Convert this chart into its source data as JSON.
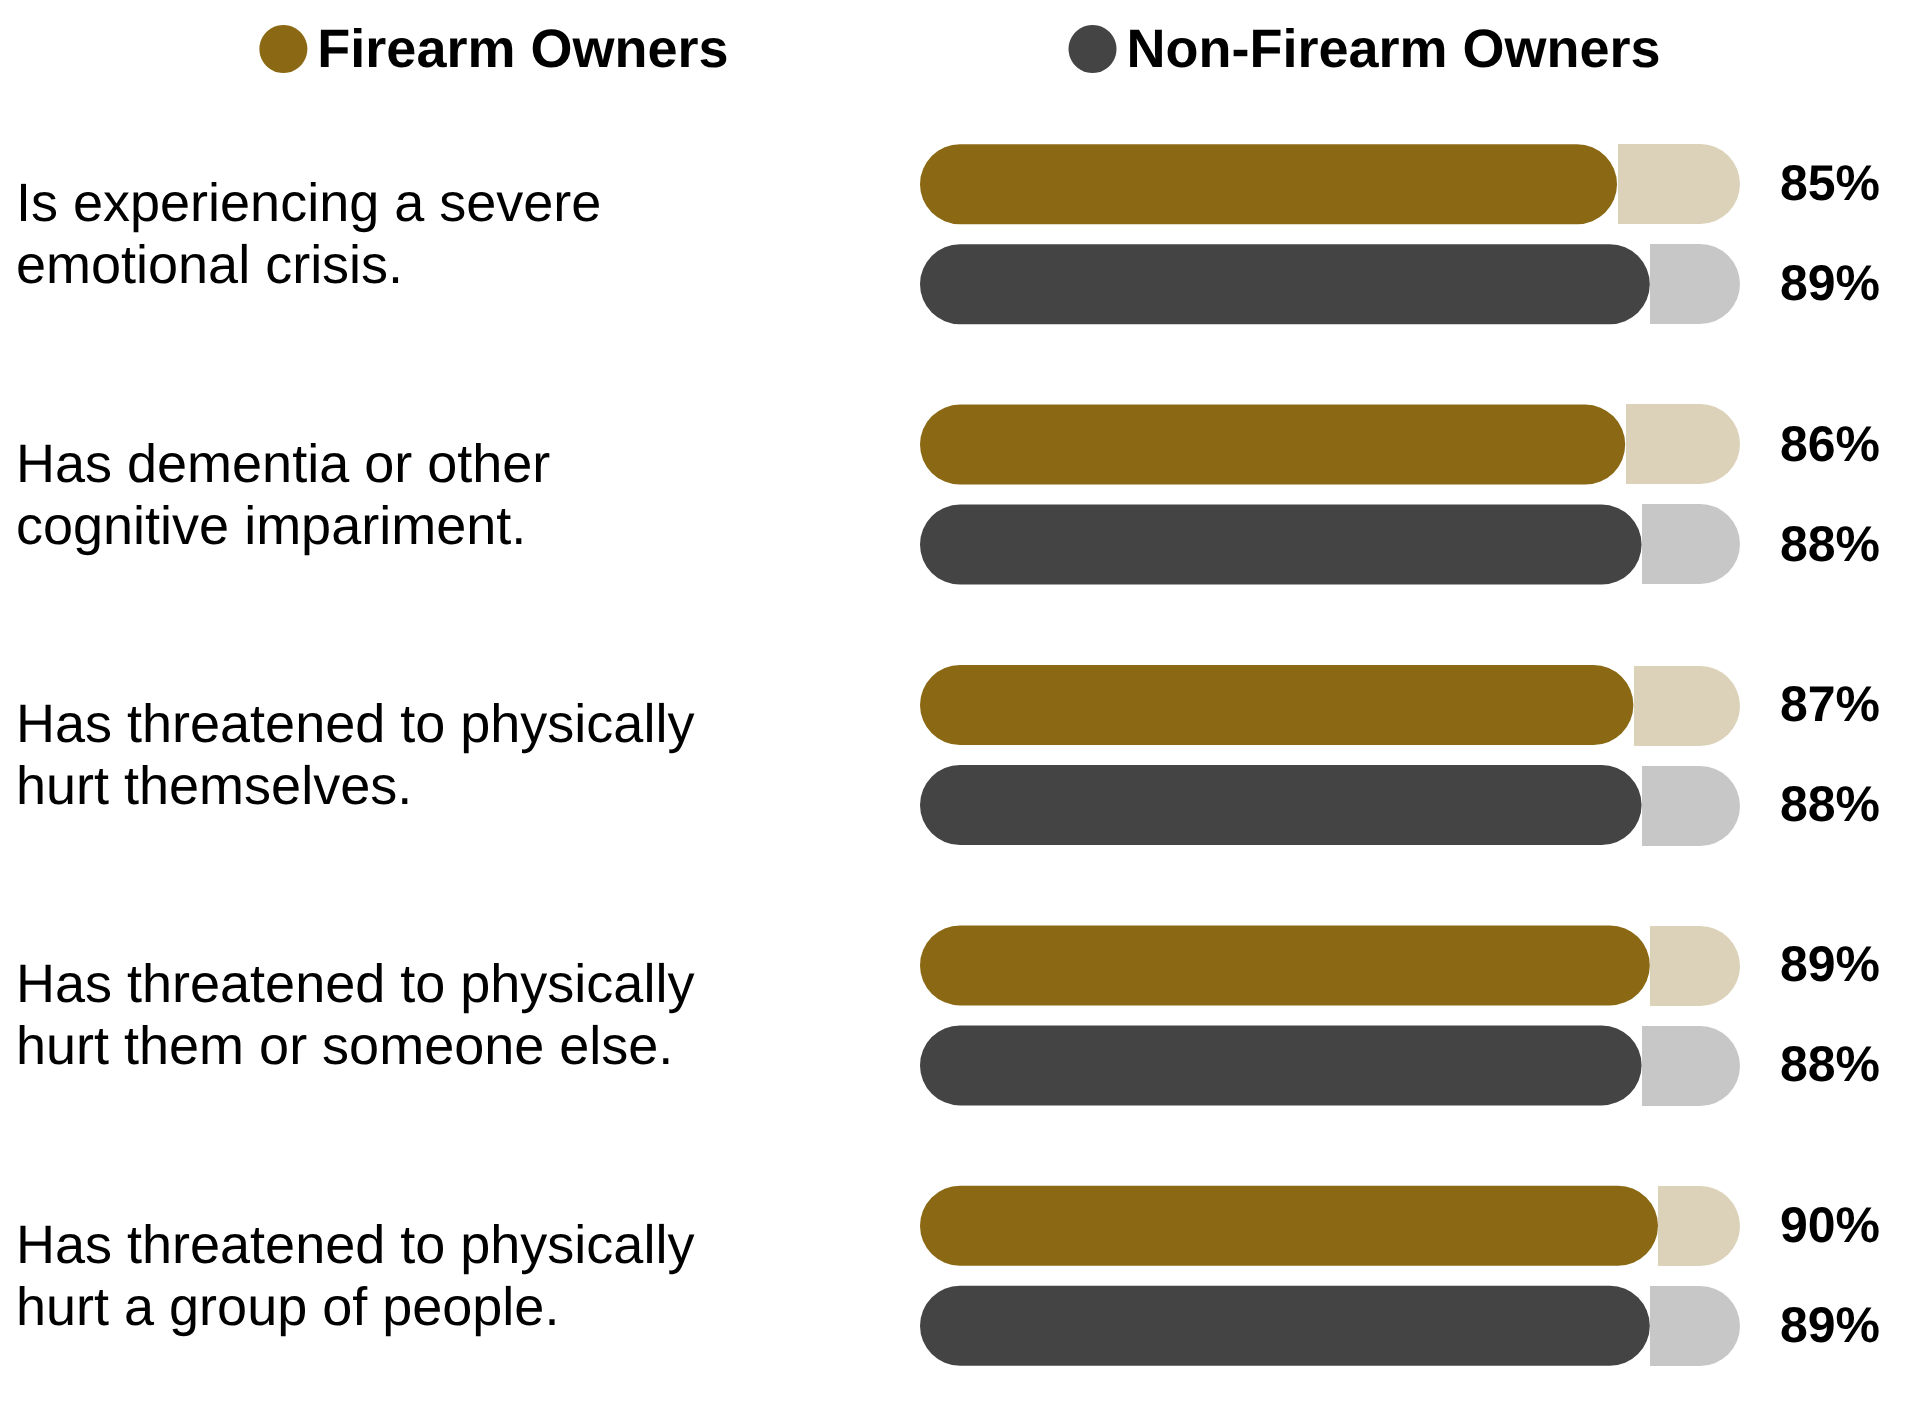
{
  "chart_data": {
    "type": "bar",
    "orientation": "horizontal",
    "categories": [
      "Is experiencing a severe emotional crisis.",
      "Has dementia or other cognitive impariment.",
      "Has threatened to physically hurt themselves.",
      "Has threatened to physically hurt them or someone else.",
      "Has threatened to physically hurt a group of people."
    ],
    "series": [
      {
        "name": "Firearm Owners",
        "color": "#8b6914",
        "values": [
          85,
          86,
          87,
          89,
          90
        ],
        "value_labels": [
          "85%",
          "86%",
          "87%",
          "89%",
          "90%"
        ]
      },
      {
        "name": "Non-Firearm Owners",
        "color": "#444444",
        "values": [
          89,
          88,
          88,
          88,
          89
        ],
        "value_labels": [
          "89%",
          "88%",
          "88%",
          "88%",
          "89%"
        ]
      }
    ],
    "xlim": [
      0,
      100
    ],
    "tick_labels": "y",
    "grid": false,
    "legend": "top"
  }
}
